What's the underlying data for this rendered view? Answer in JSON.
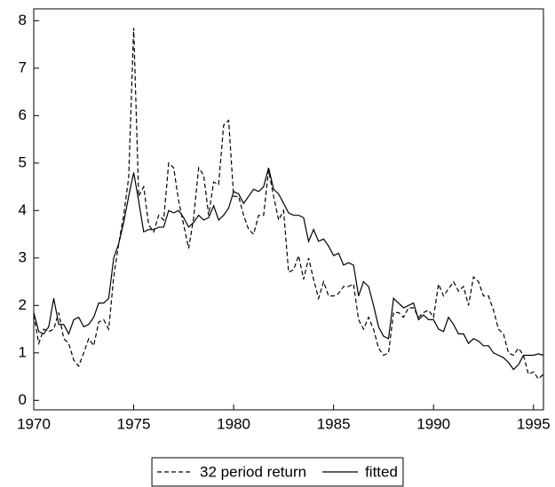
{
  "chart_data": {
    "type": "line",
    "x": [
      1970,
      1970.25,
      1970.5,
      1970.75,
      1971,
      1971.25,
      1971.5,
      1971.75,
      1972,
      1972.25,
      1972.5,
      1972.75,
      1973,
      1973.25,
      1973.5,
      1973.75,
      1974,
      1974.25,
      1974.5,
      1974.75,
      1975,
      1975.25,
      1975.5,
      1975.75,
      1976,
      1976.25,
      1976.5,
      1976.75,
      1977,
      1977.25,
      1977.5,
      1977.75,
      1978,
      1978.25,
      1978.5,
      1978.75,
      1979,
      1979.25,
      1979.5,
      1979.75,
      1980,
      1980.25,
      1980.5,
      1980.75,
      1981,
      1981.25,
      1981.5,
      1981.75,
      1982,
      1982.25,
      1982.5,
      1982.75,
      1983,
      1983.25,
      1983.5,
      1983.75,
      1984,
      1984.25,
      1984.5,
      1984.75,
      1985,
      1985.25,
      1985.5,
      1985.75,
      1986,
      1986.25,
      1986.5,
      1986.75,
      1987,
      1987.25,
      1987.5,
      1987.75,
      1988,
      1988.25,
      1988.5,
      1988.75,
      1989,
      1989.25,
      1989.5,
      1989.75,
      1990,
      1990.25,
      1990.5,
      1990.75,
      1991,
      1991.25,
      1991.5,
      1991.75,
      1992,
      1992.25,
      1992.5,
      1992.75,
      1993,
      1993.25,
      1993.5,
      1993.75,
      1994,
      1994.25,
      1994.5,
      1994.75,
      1995,
      1995.25,
      1995.5
    ],
    "series": [
      {
        "name": "32 period return",
        "color": "#000000",
        "line_style": "dashed",
        "values": [
          1.8,
          1.2,
          1.5,
          1.45,
          1.5,
          1.85,
          1.3,
          1.2,
          0.85,
          0.72,
          1.0,
          1.3,
          1.15,
          1.65,
          1.7,
          1.5,
          2.6,
          3.3,
          3.9,
          4.7,
          7.85,
          4.3,
          4.5,
          3.7,
          3.55,
          3.9,
          3.8,
          5.0,
          4.9,
          4.2,
          3.7,
          3.2,
          3.85,
          4.9,
          4.75,
          3.9,
          4.6,
          4.55,
          5.8,
          5.9,
          4.3,
          4.3,
          3.9,
          3.6,
          3.5,
          3.9,
          3.9,
          4.85,
          4.3,
          3.8,
          4.0,
          2.7,
          2.75,
          3.05,
          2.55,
          3.0,
          2.55,
          2.15,
          2.5,
          2.2,
          2.2,
          2.25,
          2.4,
          2.4,
          2.45,
          1.7,
          1.5,
          1.75,
          1.5,
          1.1,
          0.95,
          1.0,
          1.85,
          1.85,
          1.75,
          1.95,
          1.95,
          1.75,
          1.85,
          1.9,
          1.75,
          2.45,
          2.2,
          2.35,
          2.5,
          2.3,
          2.4,
          2.0,
          2.6,
          2.5,
          2.2,
          2.2,
          1.9,
          1.5,
          1.4,
          1.0,
          0.95,
          1.1,
          0.95,
          0.55,
          0.6,
          0.45,
          0.55
        ]
      },
      {
        "name": "fitted",
        "color": "#000000",
        "line_style": "solid",
        "values": [
          1.85,
          1.45,
          1.4,
          1.55,
          2.15,
          1.6,
          1.6,
          1.4,
          1.7,
          1.75,
          1.55,
          1.6,
          1.75,
          2.05,
          2.05,
          2.15,
          3.0,
          3.3,
          3.75,
          4.3,
          4.8,
          4.2,
          3.55,
          3.6,
          3.6,
          3.65,
          3.65,
          4.0,
          3.95,
          4.0,
          3.85,
          3.65,
          3.75,
          3.9,
          3.8,
          3.85,
          4.1,
          3.8,
          3.9,
          4.05,
          4.4,
          4.35,
          4.15,
          4.3,
          4.45,
          4.4,
          4.5,
          4.9,
          4.45,
          4.35,
          4.15,
          3.95,
          3.9,
          3.9,
          3.85,
          3.35,
          3.6,
          3.35,
          3.4,
          3.25,
          3.05,
          3.1,
          2.85,
          2.9,
          2.85,
          2.2,
          2.5,
          2.4,
          2.0,
          1.55,
          1.35,
          1.3,
          2.15,
          2.05,
          1.95,
          2.0,
          2.05,
          1.7,
          1.8,
          1.7,
          1.7,
          1.5,
          1.45,
          1.75,
          1.6,
          1.4,
          1.4,
          1.2,
          1.3,
          1.25,
          1.15,
          1.15,
          1.0,
          0.95,
          0.9,
          0.8,
          0.65,
          0.75,
          0.95,
          0.95,
          0.95,
          0.98,
          0.95
        ]
      }
    ],
    "xlim": [
      1970,
      1995.5
    ],
    "xticks": [
      1970,
      1975,
      1980,
      1985,
      1990,
      1995
    ],
    "ylim": [
      -0.2,
      8.25
    ],
    "yticks": [
      0,
      1,
      2,
      3,
      4,
      5,
      6,
      7,
      8
    ],
    "grid": false,
    "legend": "bottom"
  }
}
